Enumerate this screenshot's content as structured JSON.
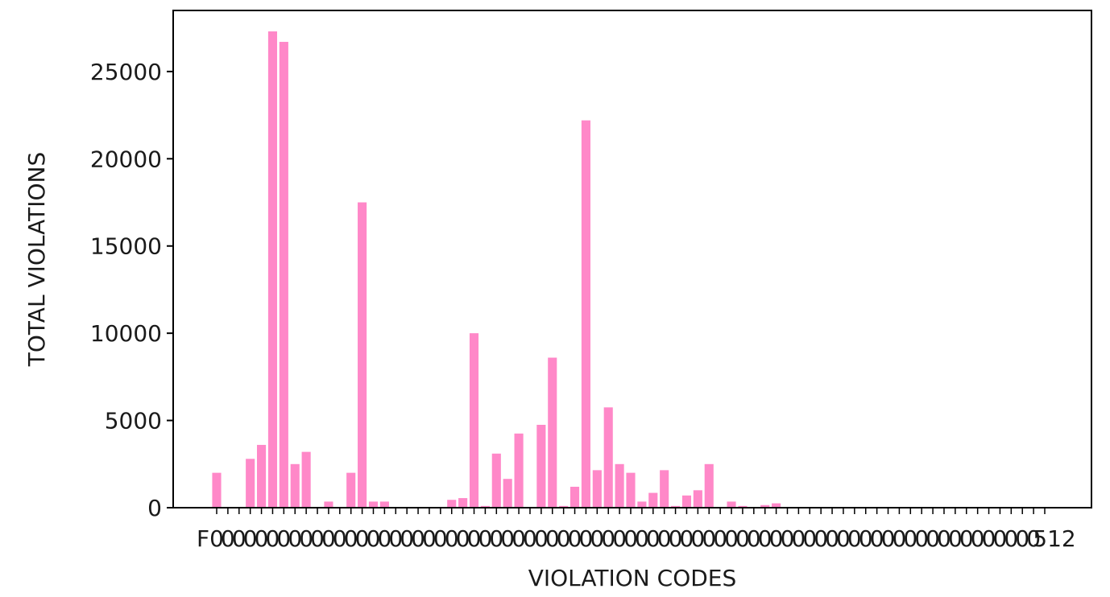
{
  "chart_data": {
    "type": "bar",
    "xlabel": "VIOLATION CODES",
    "ylabel": "TOTAL VIOLATIONS",
    "ylim": [
      0,
      28500
    ],
    "yticks": [
      0,
      5000,
      10000,
      15000,
      20000,
      25000
    ],
    "ytick_labels": [
      "0",
      "5000",
      "10000",
      "15000",
      "20000",
      "25000"
    ],
    "grid": false,
    "bar_color": "#ff88c8",
    "x_tick_count": 75,
    "x_first_label": "F0",
    "x_last_label": "512",
    "values": [
      2000,
      0,
      0,
      2800,
      3600,
      27300,
      26700,
      2500,
      3200,
      0,
      350,
      0,
      2000,
      17500,
      350,
      350,
      0,
      0,
      0,
      0,
      0,
      450,
      550,
      10000,
      100,
      3100,
      1650,
      4250,
      0,
      4750,
      8600,
      100,
      1200,
      22200,
      2150,
      5750,
      2500,
      2000,
      350,
      850,
      2150,
      100,
      700,
      1000,
      2500,
      0,
      350,
      100,
      0,
      150,
      250,
      0,
      0,
      0,
      0,
      0,
      0,
      0,
      0,
      0,
      0,
      0,
      0,
      0,
      0,
      0,
      0,
      0,
      0,
      0,
      0,
      0,
      0,
      0,
      0
    ]
  }
}
